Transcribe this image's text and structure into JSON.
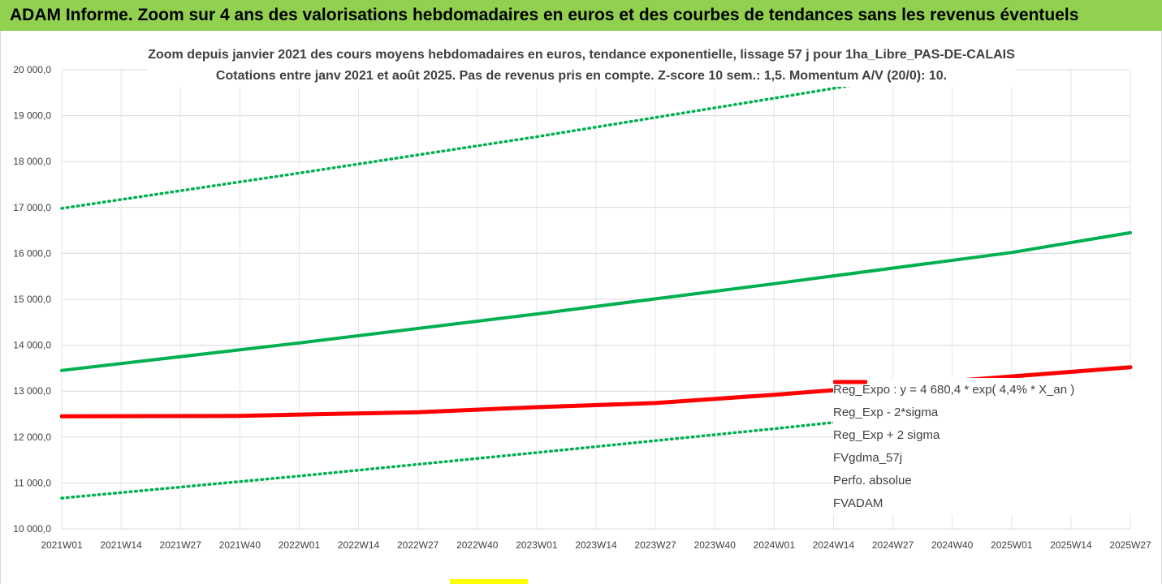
{
  "header": {
    "title": "ADAM Informe. Zoom sur 4 ans des valorisations hebdomadaires en euros et des courbes de tendances sans les revenus éventuels",
    "background": "#92d050"
  },
  "chart_data": {
    "type": "line",
    "title_line1": "Zoom depuis janvier 2021 des cours moyens hebdomadaires en euros, tendance exponentielle, lissage 57 j pour 1ha_Libre_PAS-DE-CALAIS",
    "title_line2": "Cotations entre janv 2021 et août 2025. Pas de revenus pris en compte. Z-score 10 sem.: 1,5. Momentum A/V (20/0): 10.",
    "xlabel": "",
    "ylabel": "",
    "x_tick_labels": [
      "2021W01",
      "2021W14",
      "2021W27",
      "2021W40",
      "2022W01",
      "2022W14",
      "2022W27",
      "2022W40",
      "2023W01",
      "2023W14",
      "2023W27",
      "2023W40",
      "2024W01",
      "2024W14",
      "2024W27",
      "2024W40",
      "2025W01",
      "2025W14",
      "2025W27"
    ],
    "x_range": [
      "2021W01",
      "2025W27"
    ],
    "y_tick_labels": [
      "20 000,0",
      "19 000,0",
      "18 000,0",
      "17 000,0",
      "16 000,0",
      "15 000,0",
      "14 000,0",
      "13 000,0",
      "12 000,0",
      "11 000,0",
      "10 000,0"
    ],
    "ylim": [
      10000,
      20000
    ],
    "grid": "horizontal and vertical",
    "legend_position": "right",
    "series": [
      {
        "name": "Reg_Expo : y = 4 680,4 * exp( 4,4% * X_an )",
        "color": "#00b050",
        "style": "solid",
        "x": [
          "2021W01",
          "2022W01",
          "2023W01",
          "2024W01",
          "2025W01",
          "2025W27"
        ],
        "values": [
          13450,
          14050,
          14680,
          15340,
          16020,
          16450
        ]
      },
      {
        "name": "Reg_Exp - 2*sigma",
        "color": "#00b050",
        "style": "dotted",
        "x": [
          "2021W01",
          "2022W01",
          "2023W01",
          "2024W01",
          "2025W01",
          "2025W27"
        ],
        "values": [
          10670,
          11150,
          11660,
          12180,
          12730,
          13040
        ]
      },
      {
        "name": "Reg_Exp + 2 sigma",
        "color": "#00b050",
        "style": "dotted",
        "x": [
          "2021W01",
          "2022W01",
          "2023W01",
          "2024W01",
          "2025W01",
          "2025W27"
        ],
        "values": [
          16980,
          17750,
          18540,
          19380,
          20240,
          20790
        ]
      },
      {
        "name": "FVgdma_57j",
        "color": "#000000",
        "style": "solid",
        "x": [],
        "values": []
      },
      {
        "name": "Perfo. absolue",
        "color": "#ff0000",
        "style": "dotted",
        "x": [],
        "values": []
      },
      {
        "name": "FVADAM",
        "color": "#ff0000",
        "style": "thick",
        "x": [
          "2021W01",
          "2021W40",
          "2022W01",
          "2022W27",
          "2023W01",
          "2023W27",
          "2024W01",
          "2024W27",
          "2025W01",
          "2025W27"
        ],
        "values": [
          12450,
          12460,
          12490,
          12540,
          12650,
          12740,
          12920,
          13120,
          13320,
          13520
        ]
      }
    ]
  }
}
